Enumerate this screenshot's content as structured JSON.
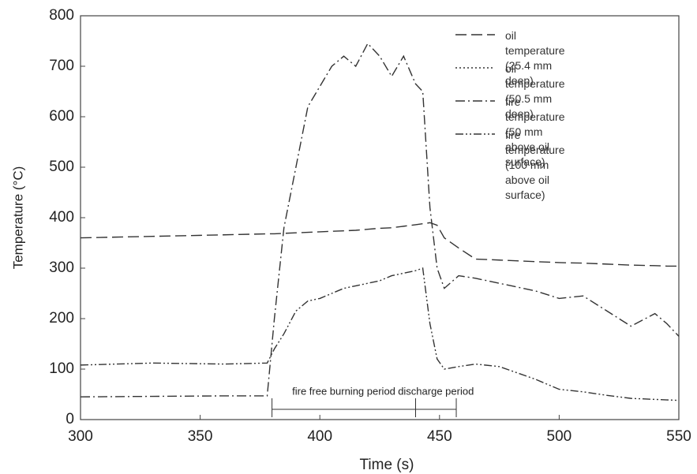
{
  "chart_data": {
    "type": "line",
    "xlabel": "Time (s)",
    "ylabel": "Temperature (°C)",
    "x": [
      300,
      330,
      360,
      378,
      381,
      385,
      390,
      395,
      400,
      405,
      410,
      415,
      420,
      425,
      430,
      435,
      440,
      443,
      446,
      449,
      452,
      458,
      465,
      475,
      490,
      500,
      510,
      520,
      530,
      540,
      545,
      550
    ],
    "series": [
      {
        "name": "oil temperature\n(25.4 mm deep)",
        "color": "#333333",
        "dash": "14,6",
        "values": [
          360,
          363,
          366,
          368,
          368,
          369,
          370,
          371,
          372,
          373,
          374,
          375,
          377,
          379,
          380,
          383,
          386,
          388,
          390,
          385,
          360,
          340,
          318,
          316,
          313,
          311,
          310,
          308,
          306,
          305,
          304,
          304
        ]
      },
      {
        "name": "oil temperature\n(50.5 mm deep)",
        "color": "#333333",
        "dash": "2,3",
        "values": [
          null,
          null,
          null,
          null,
          null,
          null,
          null,
          null,
          null,
          null,
          null,
          null,
          null,
          null,
          null,
          null,
          null,
          null,
          null,
          null,
          null,
          null,
          null,
          null,
          null,
          null,
          null,
          null,
          null,
          null,
          null,
          null
        ]
      },
      {
        "name": "fire temperature\n(50 mm above oil surface)",
        "color": "#333333",
        "dash": "12,4,2,4",
        "values": [
          45,
          46,
          47,
          47,
          200,
          380,
          500,
          620,
          660,
          700,
          720,
          700,
          745,
          720,
          680,
          720,
          665,
          650,
          420,
          300,
          260,
          285,
          280,
          270,
          255,
          240,
          245,
          215,
          185,
          210,
          190,
          165
        ]
      },
      {
        "name": "fire temperature\n(100 mm above oil surface)",
        "color": "#333333",
        "dash": "10,3,2,3,2,3",
        "values": [
          108,
          112,
          110,
          112,
          140,
          170,
          215,
          235,
          240,
          250,
          260,
          265,
          270,
          275,
          285,
          290,
          295,
          300,
          190,
          120,
          100,
          105,
          110,
          105,
          80,
          60,
          55,
          48,
          42,
          40,
          39,
          38
        ]
      }
    ],
    "annotations": [
      {
        "text": "fire free burning period",
        "x": [
          380,
          440
        ]
      },
      {
        "text": "discharge period",
        "x": [
          440,
          457
        ]
      }
    ],
    "xlim": [
      300,
      550
    ],
    "xticks": [
      300,
      350,
      400,
      450,
      500,
      550
    ],
    "ylim": [
      0,
      800
    ],
    "yticks": [
      0,
      100,
      200,
      300,
      400,
      500,
      600,
      700,
      800
    ],
    "legend": "top-right"
  }
}
